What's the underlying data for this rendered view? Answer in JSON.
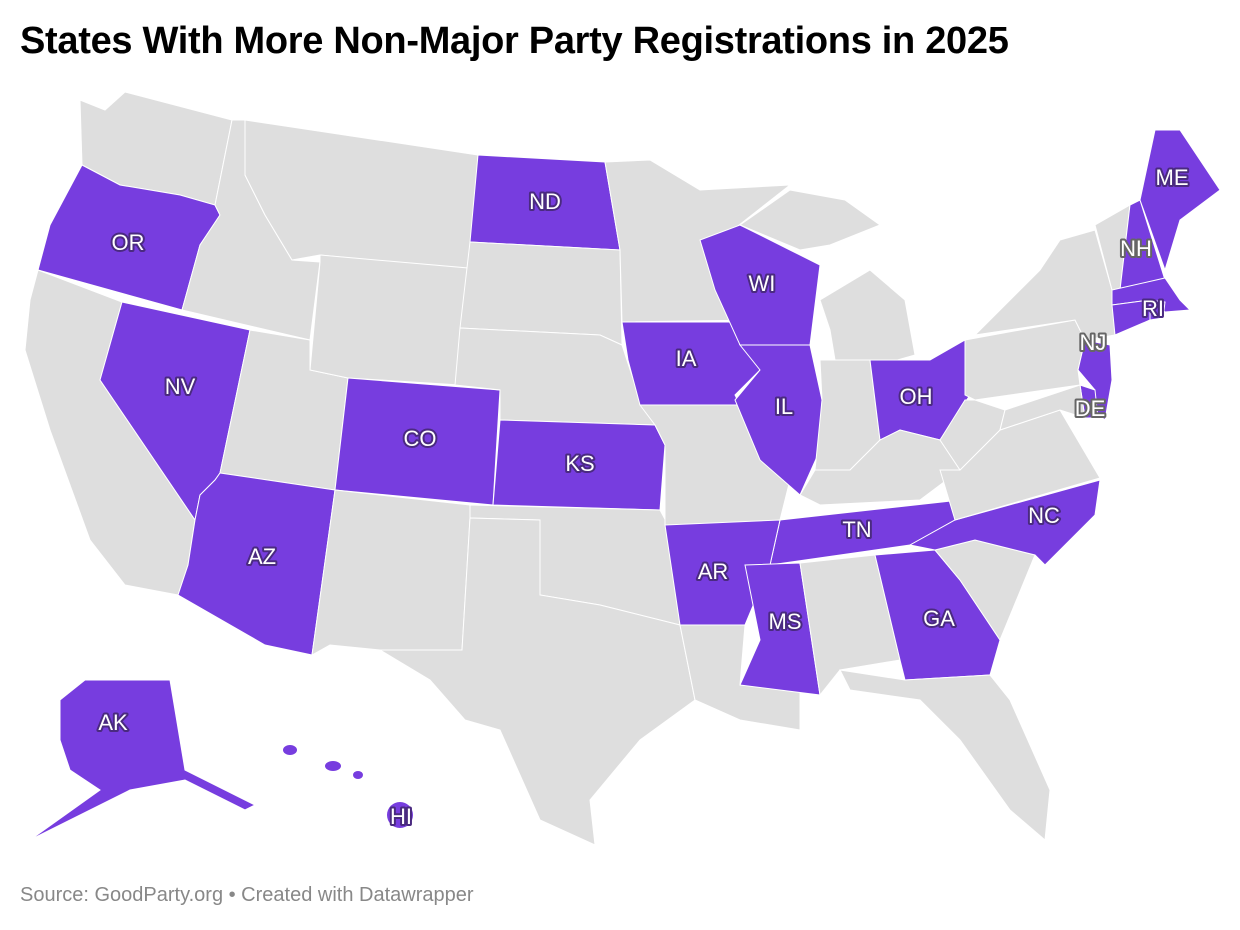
{
  "title": "States With More Non-Major Party Registrations in 2025",
  "footer": "Source: GoodParty.org • Created with Datawrapper",
  "colors": {
    "highlight": "#773ddf",
    "other": "#dedede",
    "border": "#ffffff"
  },
  "highlighted_states": [
    "OR",
    "NV",
    "AZ",
    "CO",
    "ND",
    "KS",
    "IA",
    "WI",
    "IL",
    "AR",
    "MS",
    "TN",
    "GA",
    "NC",
    "OH",
    "ME",
    "NH",
    "MA",
    "CT",
    "RI",
    "NJ",
    "DE",
    "AK",
    "HI"
  ],
  "labels": [
    "OR",
    "NV",
    "AZ",
    "CO",
    "ND",
    "KS",
    "IA",
    "WI",
    "IL",
    "AR",
    "MS",
    "TN",
    "GA",
    "NC",
    "OH",
    "ME",
    "NH",
    "RI",
    "NJ",
    "DE",
    "AK",
    "HI"
  ]
}
